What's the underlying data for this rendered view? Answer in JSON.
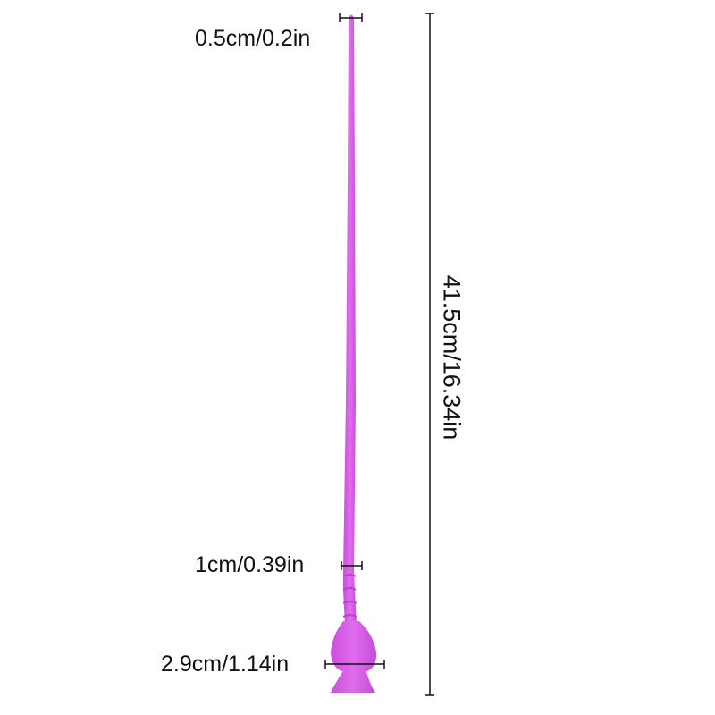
{
  "labels": {
    "tip_width": "0.5cm/0.2in",
    "shaft_width": "1cm/0.39in",
    "base_width": "2.9cm/1.14in",
    "total_length": "41.5cm/16.34in"
  },
  "colors": {
    "product": "#d95ee8",
    "lines": "#111111"
  }
}
